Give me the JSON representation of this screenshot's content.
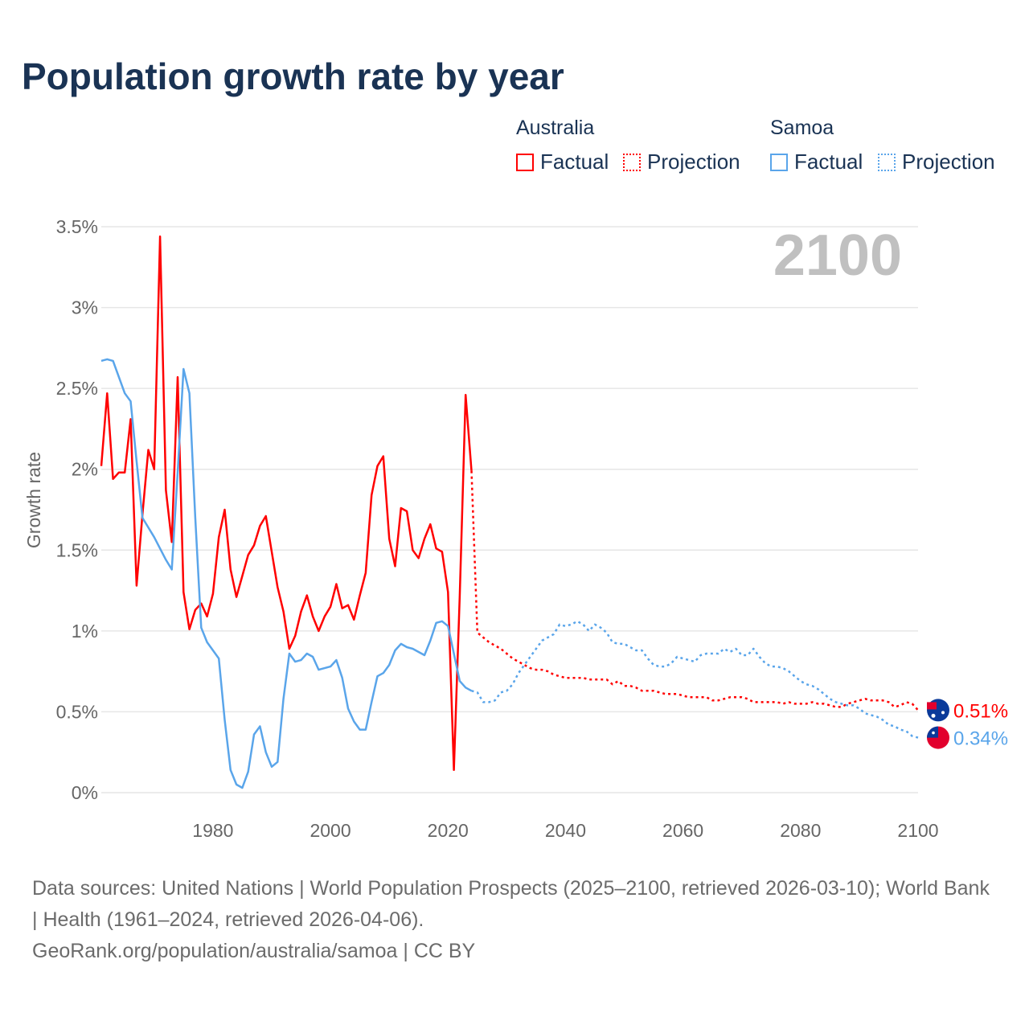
{
  "title": "Population growth rate by year",
  "legend": {
    "groups": [
      {
        "name": "Australia",
        "factual": "Factual",
        "projection": "Projection",
        "color": "#ff0000"
      },
      {
        "name": "Samoa",
        "factual": "Factual",
        "projection": "Projection",
        "color": "#5aa5ea"
      }
    ]
  },
  "year_watermark": "2100",
  "footer": {
    "sources": "Data sources: United Nations | World Population Prospects (2025–2100, retrieved 2026-03-10); World Bank | Health (1961–2024, retrieved 2026-04-06).",
    "credit": "GeoRank.org/population/australia/samoa | CC BY"
  },
  "chart_data": {
    "type": "line",
    "title": "Population growth rate by year",
    "xlabel": "",
    "ylabel": "Growth rate",
    "xlim": [
      1961,
      2100
    ],
    "ylim": [
      0,
      3.5
    ],
    "x_ticks": [
      1980,
      2000,
      2020,
      2040,
      2060,
      2080,
      2100
    ],
    "x_tick_labels": [
      "1980",
      "2000",
      "2020",
      "2040",
      "2060",
      "2080",
      "2100"
    ],
    "y_ticks": [
      0,
      0.5,
      1,
      1.5,
      2,
      2.5,
      3,
      3.5
    ],
    "y_tick_labels": [
      "0%",
      "0.5%",
      "1%",
      "1.5%",
      "2%",
      "2.5%",
      "3%",
      "3.5%"
    ],
    "grid": true,
    "legend_position": "top-right",
    "series": [
      {
        "name": "Australia Factual",
        "country": "Australia",
        "kind": "factual",
        "color": "#ff0000",
        "start_year": 1961,
        "values": [
          2.02,
          2.47,
          1.94,
          1.98,
          1.98,
          2.31,
          1.28,
          1.72,
          2.12,
          2.0,
          3.44,
          1.87,
          1.55,
          2.57,
          1.24,
          1.01,
          1.13,
          1.17,
          1.09,
          1.23,
          1.58,
          1.75,
          1.38,
          1.21,
          1.34,
          1.47,
          1.53,
          1.65,
          1.71,
          1.49,
          1.27,
          1.12,
          0.89,
          0.97,
          1.12,
          1.22,
          1.09,
          1.0,
          1.09,
          1.15,
          1.29,
          1.14,
          1.16,
          1.07,
          1.22,
          1.36,
          1.84,
          2.02,
          2.08,
          1.57,
          1.4,
          1.76,
          1.74,
          1.5,
          1.45,
          1.57,
          1.66,
          1.51,
          1.49,
          1.24,
          0.14,
          1.22,
          2.46,
          1.99
        ]
      },
      {
        "name": "Australia Projection",
        "country": "Australia",
        "kind": "projection",
        "color": "#ff0000",
        "start_year": 2024,
        "values": [
          1.99,
          0.99,
          0.96,
          0.93,
          0.91,
          0.89,
          0.86,
          0.83,
          0.81,
          0.79,
          0.77,
          0.76,
          0.76,
          0.75,
          0.73,
          0.72,
          0.71,
          0.71,
          0.71,
          0.71,
          0.7,
          0.7,
          0.7,
          0.7,
          0.67,
          0.69,
          0.66,
          0.66,
          0.65,
          0.63,
          0.63,
          0.63,
          0.62,
          0.61,
          0.61,
          0.61,
          0.6,
          0.59,
          0.59,
          0.59,
          0.59,
          0.57,
          0.57,
          0.58,
          0.59,
          0.59,
          0.59,
          0.58,
          0.56,
          0.56,
          0.56,
          0.56,
          0.56,
          0.55,
          0.56,
          0.55,
          0.55,
          0.55,
          0.56,
          0.55,
          0.55,
          0.54,
          0.53,
          0.53,
          0.55,
          0.56,
          0.57,
          0.58,
          0.57,
          0.57,
          0.57,
          0.56,
          0.53,
          0.54,
          0.56,
          0.55,
          0.51
        ]
      },
      {
        "name": "Samoa Factual",
        "country": "Samoa",
        "kind": "factual",
        "color": "#5aa5ea",
        "start_year": 1961,
        "values": [
          2.67,
          2.68,
          2.67,
          2.57,
          2.47,
          2.42,
          2.05,
          1.7,
          1.64,
          1.58,
          1.51,
          1.44,
          1.38,
          1.98,
          2.62,
          2.47,
          1.7,
          1.02,
          0.93,
          0.88,
          0.83,
          0.45,
          0.14,
          0.05,
          0.03,
          0.13,
          0.36,
          0.41,
          0.25,
          0.16,
          0.19,
          0.58,
          0.86,
          0.81,
          0.82,
          0.86,
          0.84,
          0.76,
          0.77,
          0.78,
          0.82,
          0.71,
          0.52,
          0.44,
          0.39,
          0.39,
          0.56,
          0.72,
          0.74,
          0.79,
          0.88,
          0.92,
          0.9,
          0.89,
          0.87,
          0.85,
          0.94,
          1.05,
          1.06,
          1.03,
          0.86,
          0.69,
          0.65,
          0.63
        ]
      },
      {
        "name": "Samoa Projection",
        "country": "Samoa",
        "kind": "projection",
        "color": "#5aa5ea",
        "start_year": 2024,
        "values": [
          0.63,
          0.62,
          0.56,
          0.56,
          0.57,
          0.62,
          0.63,
          0.67,
          0.74,
          0.79,
          0.84,
          0.89,
          0.94,
          0.96,
          0.98,
          1.04,
          1.03,
          1.04,
          1.06,
          1.04,
          1.0,
          1.04,
          1.02,
          0.99,
          0.93,
          0.92,
          0.92,
          0.9,
          0.88,
          0.88,
          0.83,
          0.79,
          0.78,
          0.78,
          0.8,
          0.84,
          0.83,
          0.82,
          0.81,
          0.85,
          0.86,
          0.86,
          0.86,
          0.89,
          0.87,
          0.89,
          0.85,
          0.85,
          0.89,
          0.84,
          0.8,
          0.78,
          0.78,
          0.77,
          0.75,
          0.72,
          0.69,
          0.67,
          0.66,
          0.64,
          0.61,
          0.58,
          0.56,
          0.55,
          0.54,
          0.54,
          0.52,
          0.49,
          0.48,
          0.47,
          0.45,
          0.42,
          0.41,
          0.39,
          0.38,
          0.35,
          0.34
        ]
      }
    ],
    "end_labels": [
      {
        "country": "Australia",
        "label": "0.51%",
        "value": 0.51,
        "color": "#ff0000"
      },
      {
        "country": "Samoa",
        "label": "0.34%",
        "value": 0.34,
        "color": "#5aa5ea"
      }
    ]
  }
}
